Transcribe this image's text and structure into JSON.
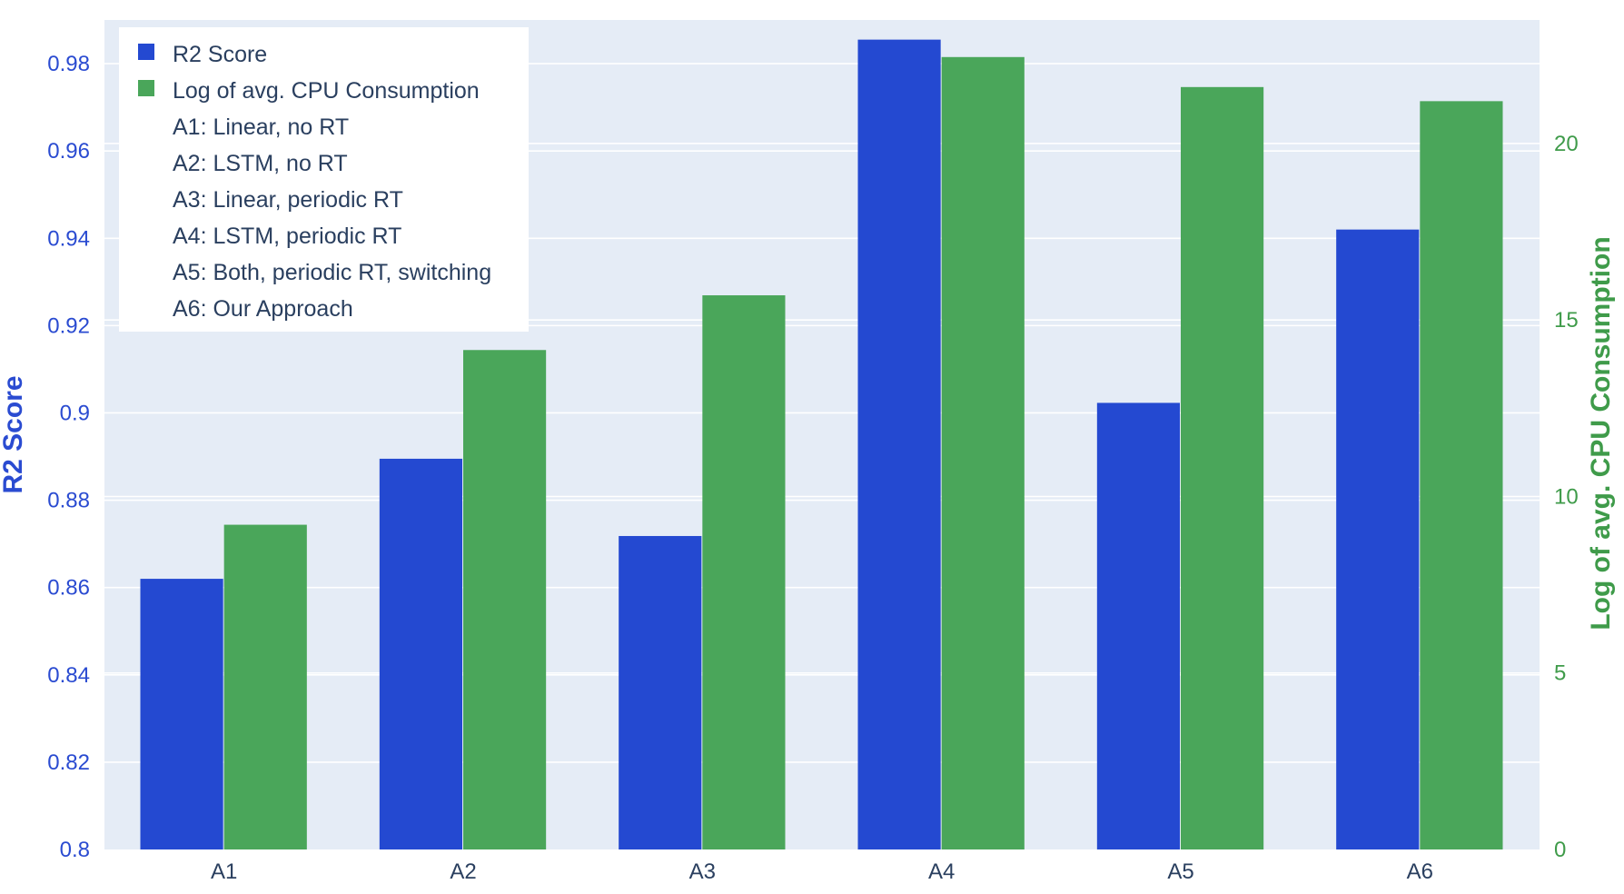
{
  "chart_data": {
    "type": "bar",
    "categories": [
      "A1",
      "A2",
      "A3",
      "A4",
      "A5",
      "A6"
    ],
    "series": [
      {
        "name": "R2 Score",
        "axis": "left",
        "color": "#2449d1",
        "values": [
          0.862,
          0.8895,
          0.8718,
          0.9855,
          0.9023,
          0.942
        ]
      },
      {
        "name": "Log of avg. CPU Consumption",
        "axis": "right",
        "color": "#4aa65a",
        "values": [
          9.2,
          14.15,
          15.7,
          22.45,
          21.6,
          21.2
        ]
      }
    ],
    "y_left": {
      "label": "R2 Score",
      "range": [
        0.8,
        0.99
      ],
      "ticks": [
        0.8,
        0.82,
        0.84,
        0.86,
        0.88,
        0.9,
        0.92,
        0.94,
        0.96,
        0.98
      ],
      "tick_labels": [
        "0.8",
        "0.82",
        "0.84",
        "0.86",
        "0.88",
        "0.9",
        "0.92",
        "0.94",
        "0.96",
        "0.98"
      ],
      "color": "#2a4bd1"
    },
    "y_right": {
      "label": "Log of avg. CPU Consumption",
      "range": [
        0,
        23.5
      ],
      "ticks": [
        0,
        5,
        10,
        15,
        20
      ],
      "tick_labels": [
        "0",
        "5",
        "10",
        "15",
        "20"
      ],
      "color": "#3f9b4a"
    },
    "legend": {
      "placement": "top-left",
      "entries": [
        "R2 Score",
        "Log of avg. CPU Consumption"
      ],
      "notes": [
        "A1: Linear, no RT",
        "A2: LSTM, no RT",
        "A3: Linear, periodic RT",
        "A4: LSTM, periodic RT",
        "A5: Both, periodic RT, switching",
        "A6: Our Approach"
      ]
    },
    "grid": true,
    "background": "#e5ecf6"
  }
}
